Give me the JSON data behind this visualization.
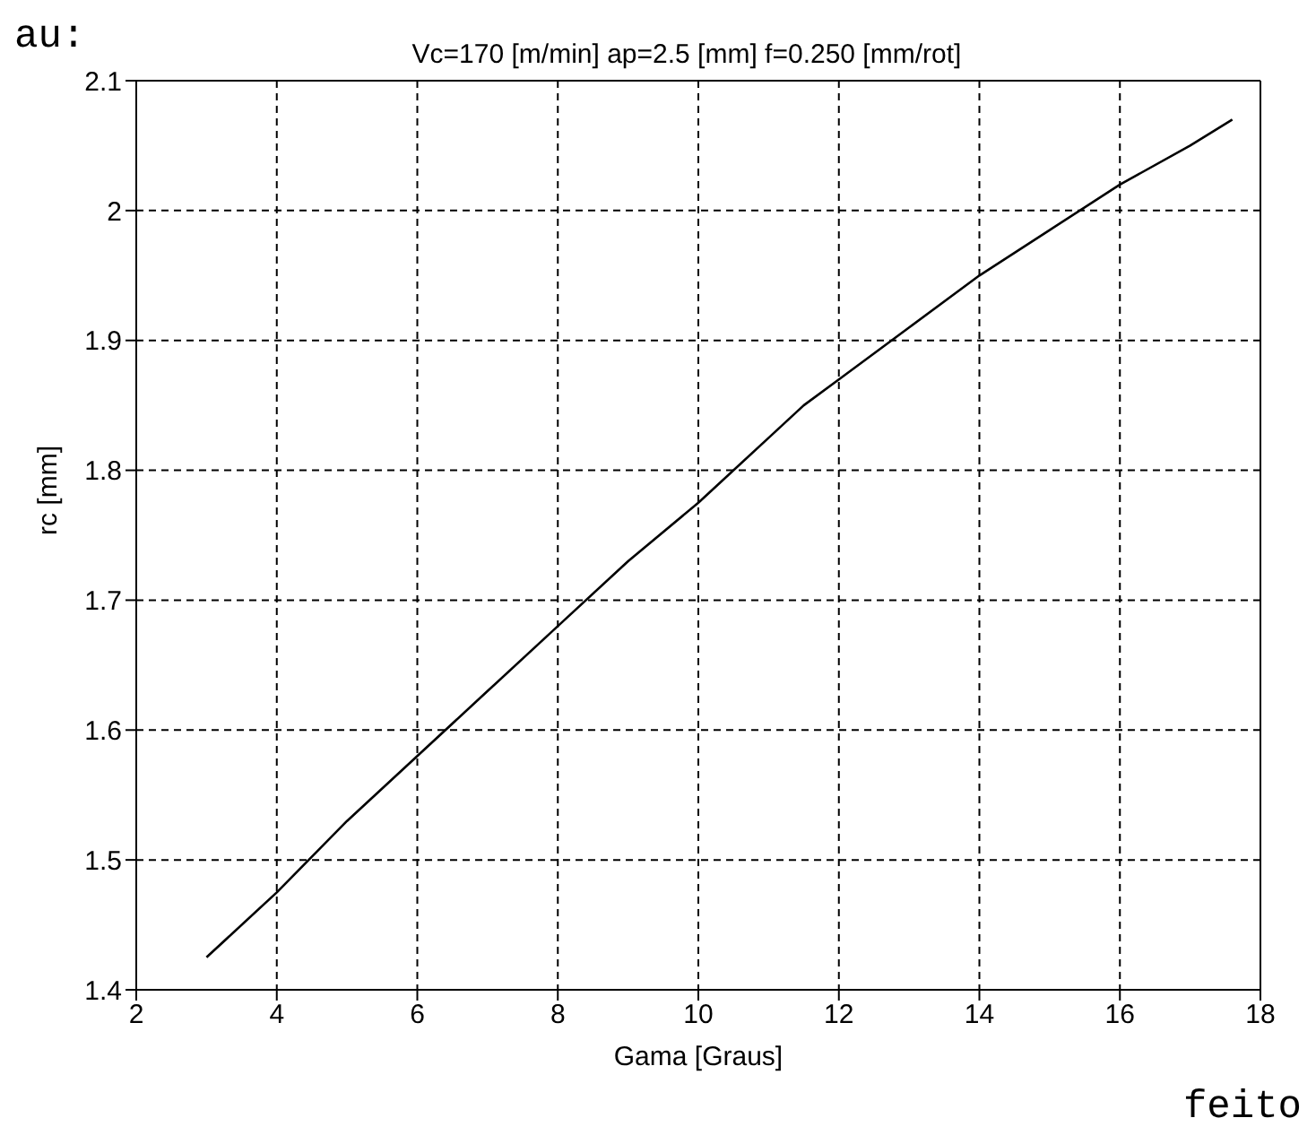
{
  "chart_data": {
    "type": "line",
    "title": "Vc=170 [m/min]  ap=2.5 [mm]  f=0.250 [mm/rot]",
    "xlabel": "Gama [Graus]",
    "ylabel": "rc [mm]",
    "x": [
      3,
      4,
      5,
      6,
      7,
      8,
      9,
      10,
      11,
      11.5,
      12,
      13,
      14,
      15,
      16,
      17,
      17.6
    ],
    "series": [
      {
        "color": "#000000",
        "values": [
          1.425,
          1.475,
          1.53,
          1.58,
          1.63,
          1.68,
          1.73,
          1.775,
          1.825,
          1.85,
          1.87,
          1.91,
          1.95,
          1.985,
          2.02,
          2.05,
          2.07
        ]
      }
    ],
    "xlim": [
      2,
      18
    ],
    "xticks": [
      2,
      4,
      6,
      8,
      10,
      12,
      14,
      16,
      18
    ],
    "ylim": [
      1.4,
      2.1
    ],
    "yticks": [
      1.4,
      1.5,
      1.6,
      1.7,
      1.8,
      1.9,
      2,
      2.1
    ],
    "grid": true,
    "line_style": "solid",
    "marker": "none",
    "legend": false,
    "annotations": [
      "au:",
      "feito"
    ]
  }
}
